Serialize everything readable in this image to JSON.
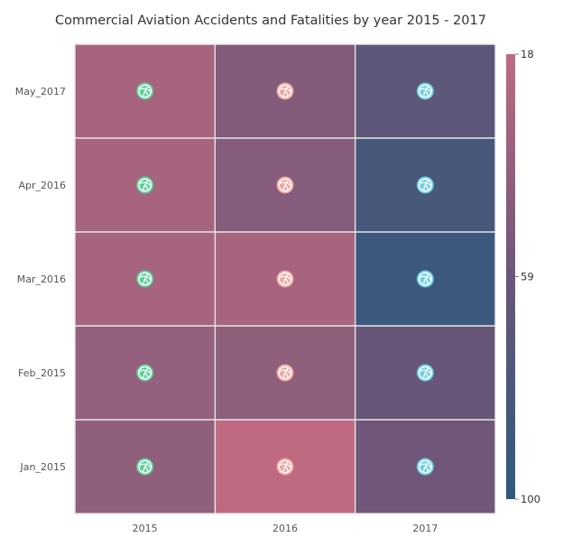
{
  "chart_data": {
    "type": "heatmap",
    "title": "Commercial Aviation Accidents and Fatalities by year 2015 - 2017",
    "x_categories": [
      "2015",
      "2016",
      "2017"
    ],
    "y_categories": [
      "May_2017",
      "Apr_2016",
      "Mar_2016",
      "Feb_2015",
      "Jan_2015"
    ],
    "values": [
      [
        30,
        47,
        68
      ],
      [
        30,
        46,
        82
      ],
      [
        30,
        30,
        90
      ],
      [
        39,
        41,
        61
      ],
      [
        41,
        18,
        56
      ]
    ],
    "color_scale": {
      "min": 18,
      "mid": 59,
      "max": 100,
      "min_color": "#c06a82",
      "mid_color": "#6a5678",
      "max_color": "#2d5a7e",
      "labels": [
        "18",
        "59",
        "100"
      ]
    },
    "markers": {
      "icon": "volleyball-icon",
      "column_colors": [
        "#5fcf9a",
        "#f4a6a0",
        "#6fd0e2"
      ]
    },
    "grid_line_color": "#e6e6e6"
  }
}
